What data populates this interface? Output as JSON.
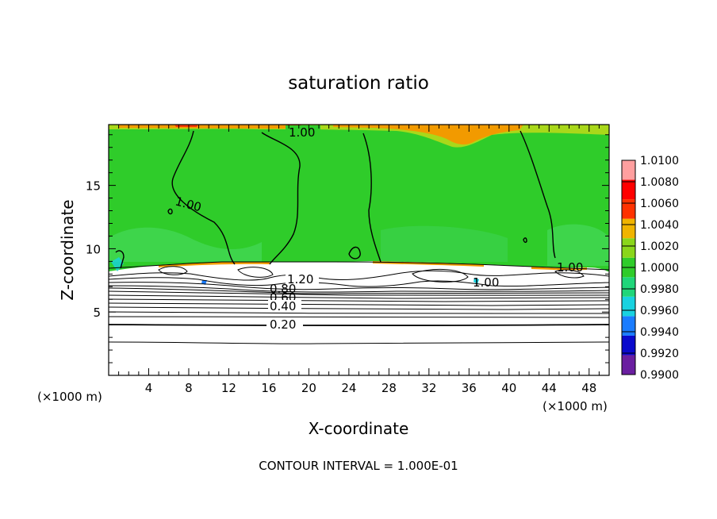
{
  "chart_data": {
    "type": "heatmap",
    "title": "saturation ratio",
    "xlabel": "X-coordinate",
    "ylabel": "Z-coordinate",
    "x_unit_left": "(×1000 m)",
    "x_unit_right": "(×1000 m)",
    "xlim": [
      0,
      50
    ],
    "ylim": [
      0,
      19.8
    ],
    "x_ticks": [
      4,
      8,
      12,
      16,
      20,
      24,
      28,
      32,
      36,
      40,
      44,
      48
    ],
    "y_ticks": [
      5,
      10,
      15
    ],
    "footer": "CONTOUR INTERVAL = 1.000E-01",
    "colorbar": {
      "levels": [
        0.99,
        0.992,
        0.994,
        0.996,
        0.998,
        1.0,
        1.002,
        1.004,
        1.006,
        1.008,
        1.01
      ],
      "labels": [
        "1.0100",
        "1.0080",
        "1.0060",
        "1.0040",
        "1.0020",
        "1.0000",
        "0.9980",
        "0.9960",
        "0.9940",
        "0.9920",
        "0.9900"
      ],
      "colors": [
        "#6a1fa0",
        "#0a0acc",
        "#1a7cff",
        "#18d2e0",
        "#1fd67a",
        "#2fcc2a",
        "#8ad61a",
        "#f0b400",
        "#ff3200",
        "#ff0000",
        "#ff9f9f"
      ]
    },
    "contour_labels": [
      "1.00",
      "1.00",
      "1.00",
      "1.20",
      "1.00",
      "0.80",
      "0.60",
      "0.40",
      "0.20"
    ],
    "field_background": "#2fcc2a"
  }
}
